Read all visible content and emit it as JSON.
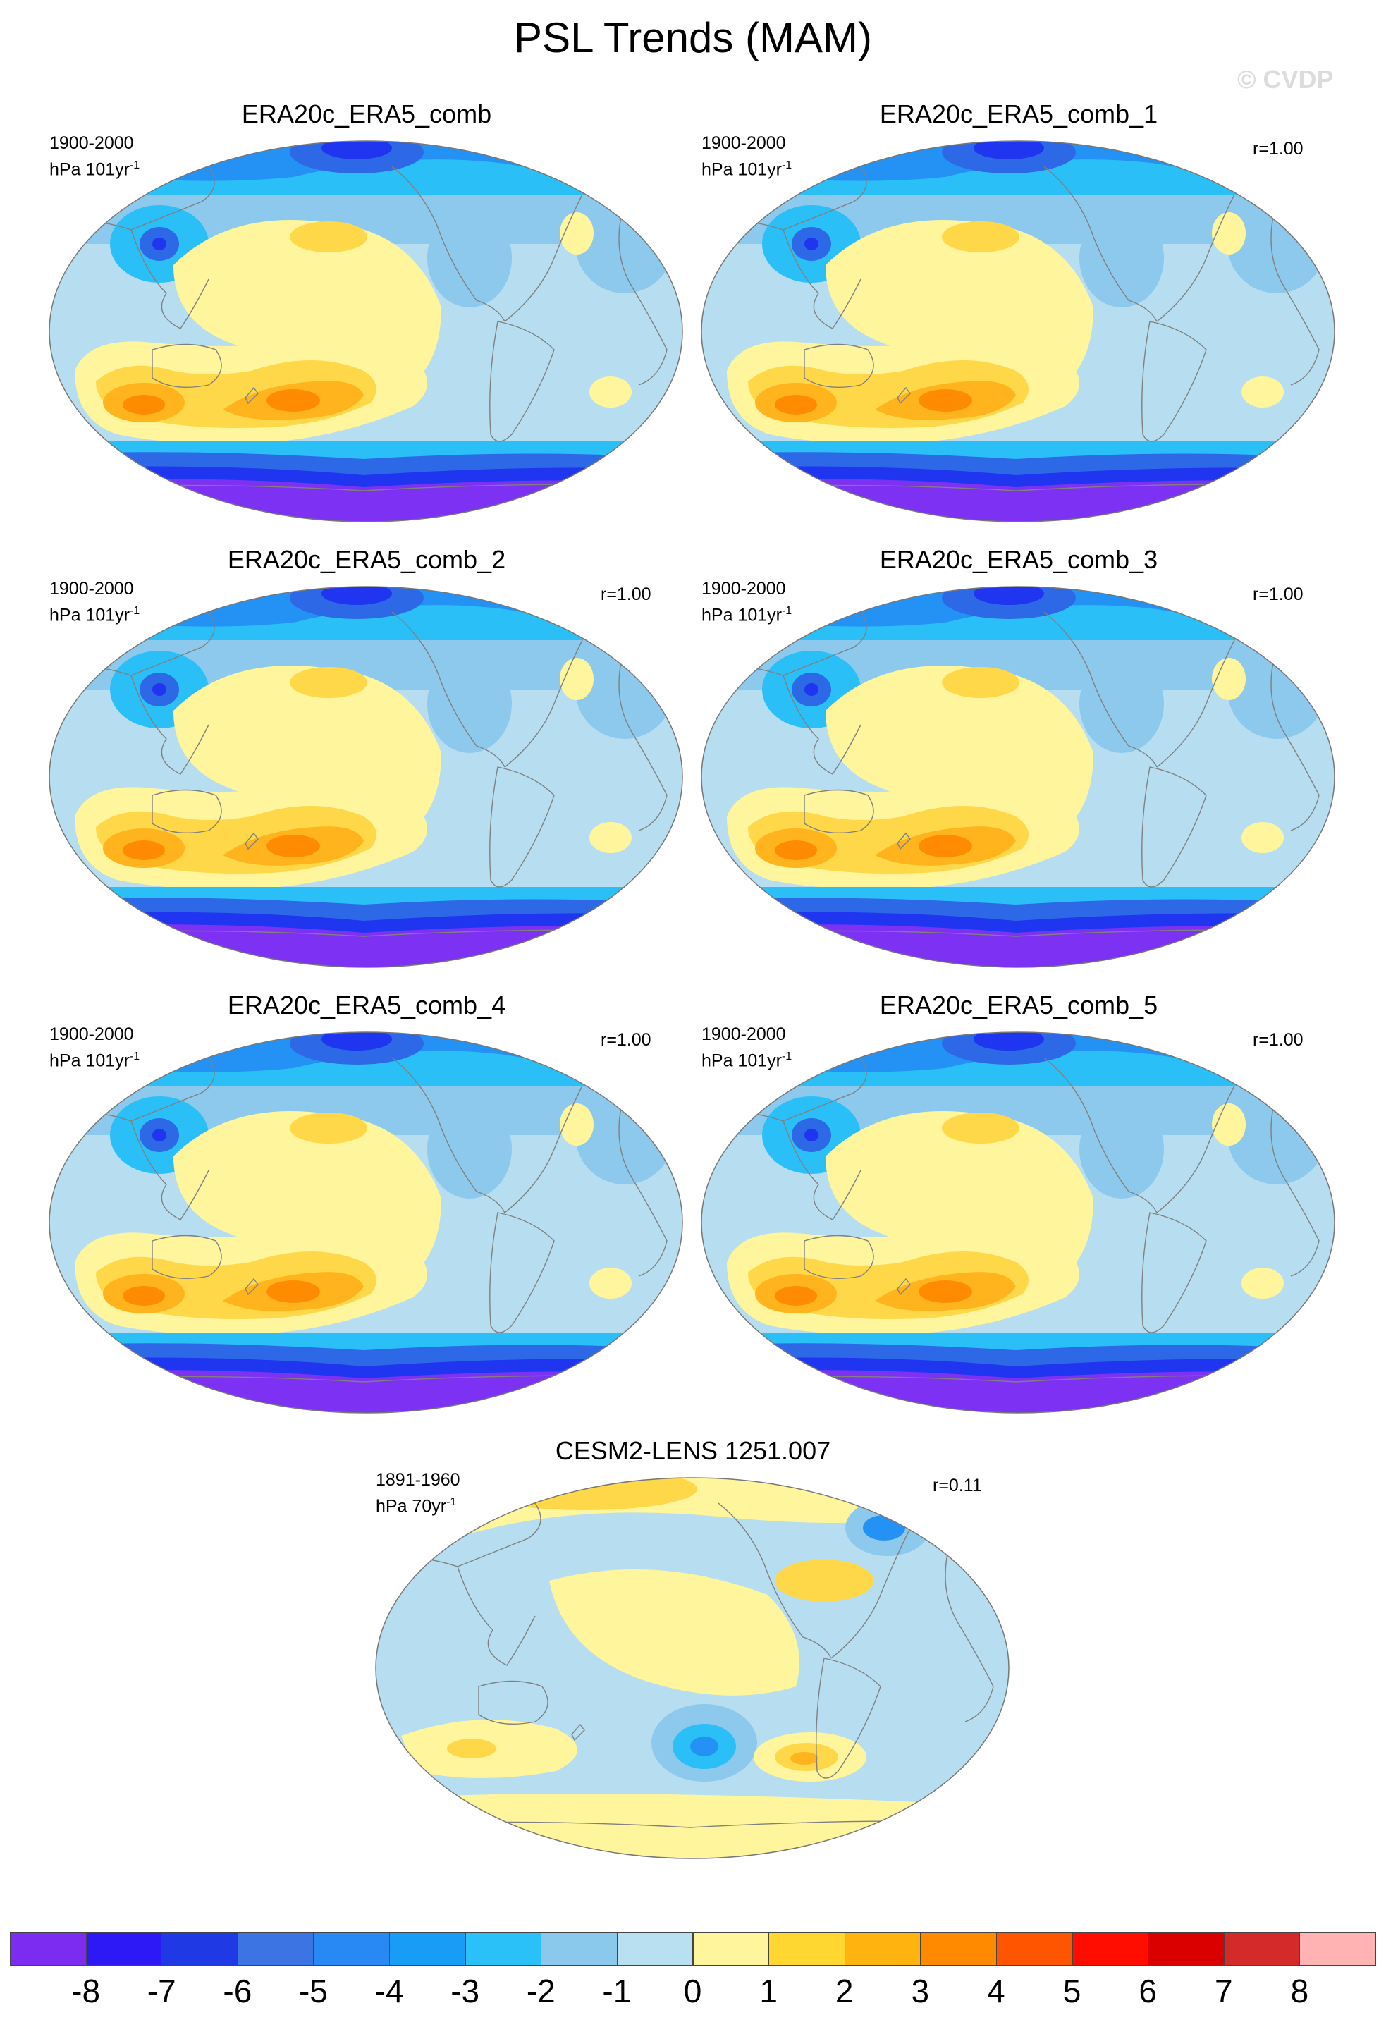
{
  "title": "PSL Trends (MAM)",
  "watermark": "© CVDP",
  "colors": {
    "ocean_base": "#b7def0",
    "positive_1": "#fff59d",
    "positive_2": "#ffd84a",
    "positive_3": "#ffb41e",
    "positive_4": "#ff8c00",
    "negative_1": "#8cc9ec",
    "negative_2": "#2bbff8",
    "negative_3": "#2492f4",
    "negative_4": "#2d68e6",
    "negative_5": "#1f35ef",
    "negative_8": "#7d31f2",
    "coast": "#808080"
  },
  "panels": [
    {
      "title": "ERA20c_ERA5_comb",
      "period": "1900-2000",
      "unit": "hPa 101yr",
      "unit_exp": "-1",
      "corr": ""
    },
    {
      "title": "ERA20c_ERA5_comb_1",
      "period": "1900-2000",
      "unit": "hPa 101yr",
      "unit_exp": "-1",
      "corr": "r=1.00"
    },
    {
      "title": "ERA20c_ERA5_comb_2",
      "period": "1900-2000",
      "unit": "hPa 101yr",
      "unit_exp": "-1",
      "corr": "r=1.00"
    },
    {
      "title": "ERA20c_ERA5_comb_3",
      "period": "1900-2000",
      "unit": "hPa 101yr",
      "unit_exp": "-1",
      "corr": "r=1.00"
    },
    {
      "title": "ERA20c_ERA5_comb_4",
      "period": "1900-2000",
      "unit": "hPa 101yr",
      "unit_exp": "-1",
      "corr": "r=1.00"
    },
    {
      "title": "ERA20c_ERA5_comb_5",
      "period": "1900-2000",
      "unit": "hPa 101yr",
      "unit_exp": "-1",
      "corr": "r=1.00"
    },
    {
      "title": "CESM2-LENS 1251.007",
      "period": "1891-1960",
      "unit": "hPa 70yr",
      "unit_exp": "-1",
      "corr": "r=0.11"
    }
  ],
  "chart_data": {
    "type": "heatmap",
    "title": "PSL Trends (MAM)",
    "projection": "Robinson global map, Pacific-centered",
    "colorbar": {
      "labels": [
        "-8",
        "-7",
        "-6",
        "-5",
        "-4",
        "-3",
        "-2",
        "-1",
        "0",
        "1",
        "2",
        "3",
        "4",
        "5",
        "6",
        "7",
        "8"
      ],
      "colors": [
        "#7b2cf0",
        "#2d18f6",
        "#1f3ae4",
        "#3c74e4",
        "#2888f4",
        "#179df5",
        "#2ac0f8",
        "#8ac8ec",
        "#b8e0f0",
        "#fff59d",
        "#ffd730",
        "#ffb30f",
        "#ff8a00",
        "#ff5500",
        "#ff0e00",
        "#db0000",
        "#d42a2a",
        "#ffb3b3"
      ]
    },
    "panels": [
      {
        "title": "ERA20c_ERA5_comb",
        "period": "1900-2000",
        "unit": "hPa 101yr-1"
      },
      {
        "title": "ERA20c_ERA5_comb_1",
        "period": "1900-2000",
        "unit": "hPa 101yr-1",
        "r": 1.0
      },
      {
        "title": "ERA20c_ERA5_comb_2",
        "period": "1900-2000",
        "unit": "hPa 101yr-1",
        "r": 1.0
      },
      {
        "title": "ERA20c_ERA5_comb_3",
        "period": "1900-2000",
        "unit": "hPa 101yr-1",
        "r": 1.0
      },
      {
        "title": "ERA20c_ERA5_comb_4",
        "period": "1900-2000",
        "unit": "hPa 101yr-1",
        "r": 1.0
      },
      {
        "title": "ERA20c_ERA5_comb_5",
        "period": "1900-2000",
        "unit": "hPa 101yr-1",
        "r": 1.0
      },
      {
        "title": "CESM2-LENS 1251.007",
        "period": "1891-1960",
        "unit": "hPa 70yr-1",
        "r": 0.11
      }
    ]
  }
}
